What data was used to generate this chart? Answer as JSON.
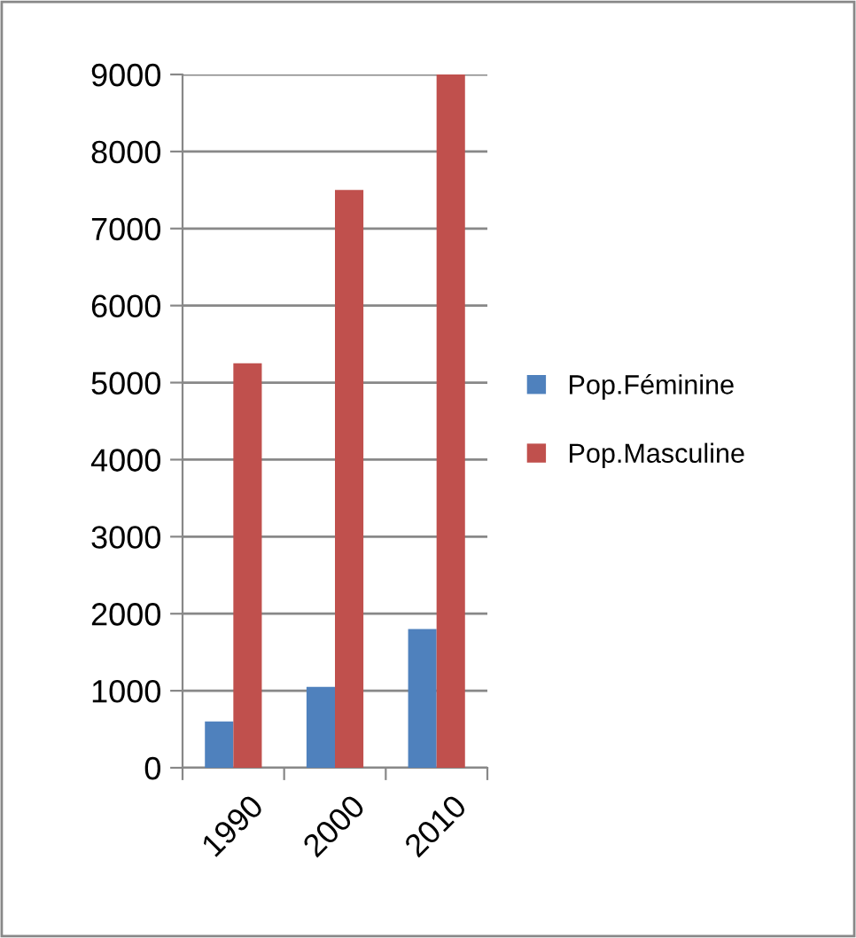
{
  "chart_data": {
    "type": "bar",
    "categories": [
      "1990",
      "2000",
      "2010"
    ],
    "series": [
      {
        "name": "Pop.Féminine",
        "color": "#4f81bd",
        "values": [
          600,
          1050,
          1800
        ]
      },
      {
        "name": "Pop.Masculine",
        "color": "#c0504d",
        "values": [
          5250,
          7500,
          9000
        ]
      }
    ],
    "ylim": [
      0,
      9000
    ],
    "yticks": [
      0,
      1000,
      2000,
      3000,
      4000,
      5000,
      6000,
      7000,
      8000,
      9000
    ],
    "grid": "y",
    "legend": "right"
  }
}
